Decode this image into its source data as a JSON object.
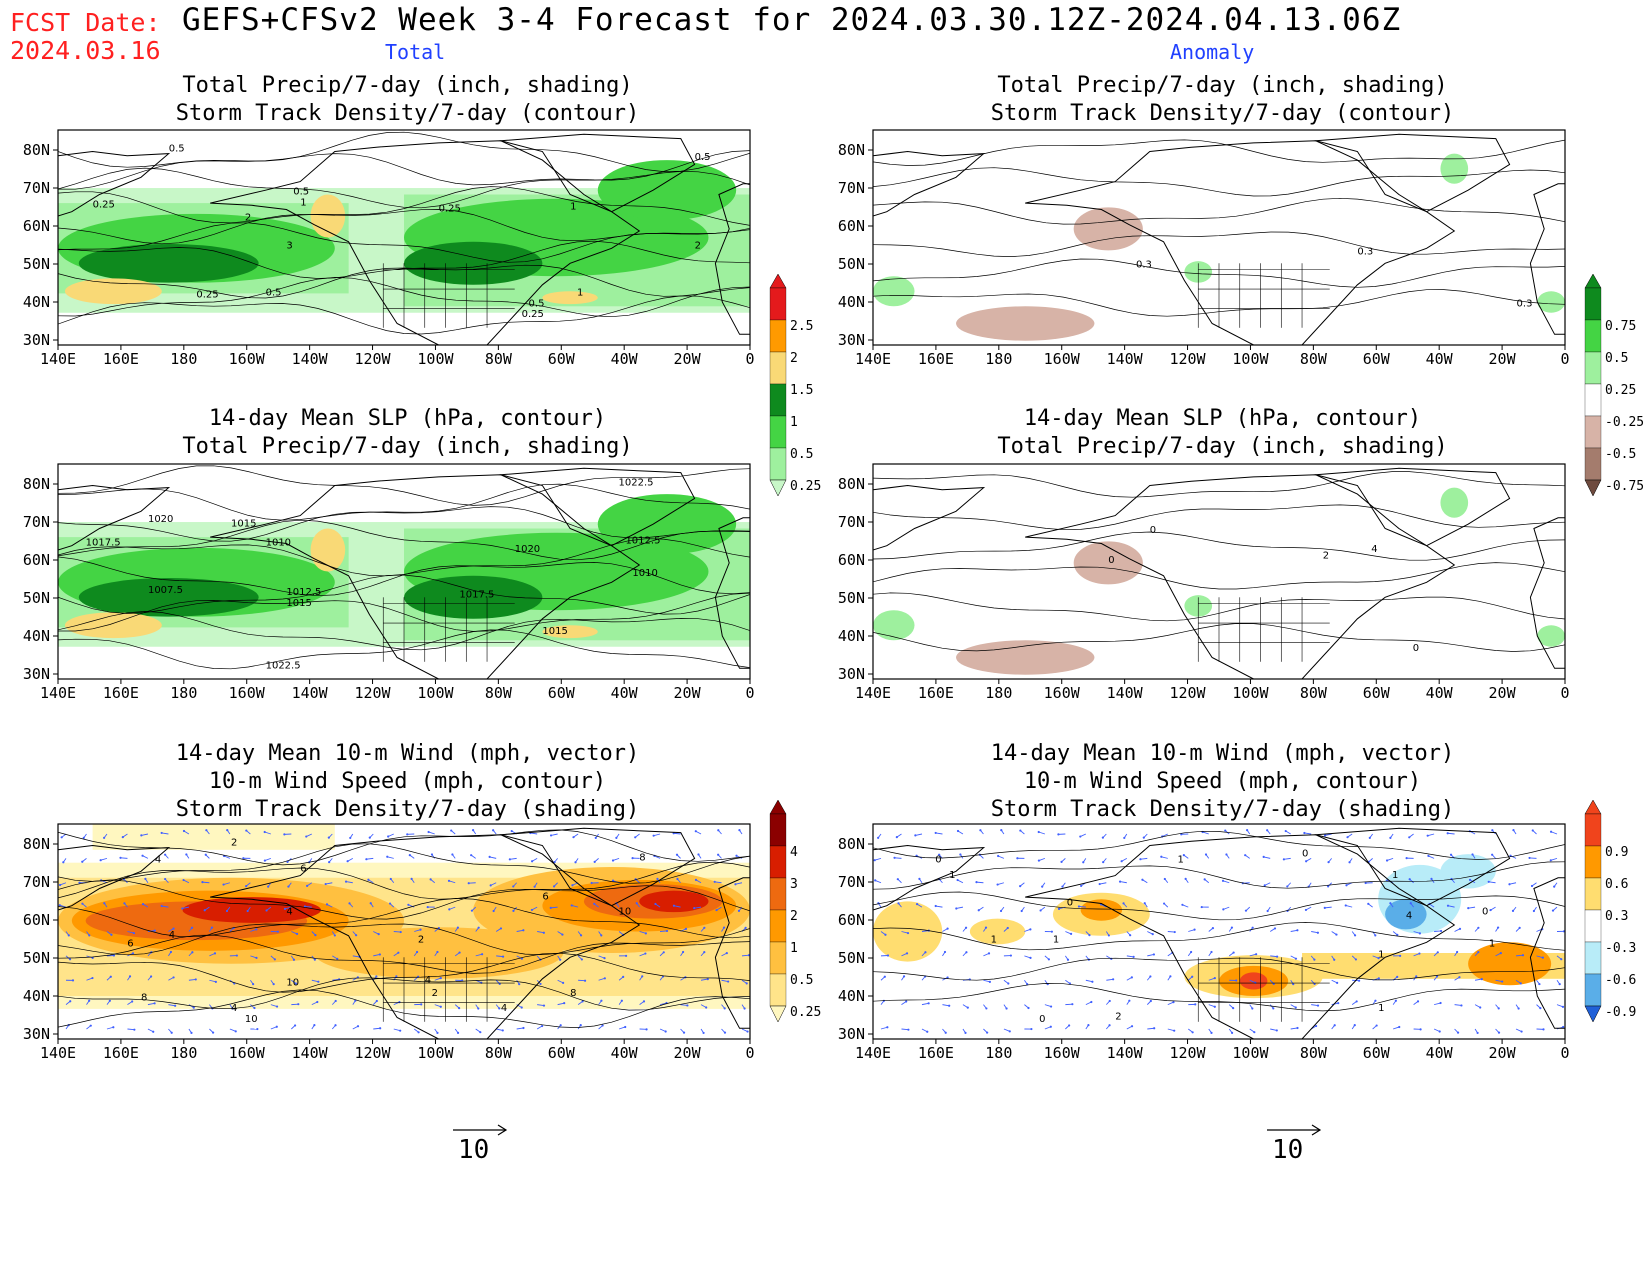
{
  "header": {
    "fcst_label": "FCST Date:",
    "fcst_date": "2024.03.16",
    "title": "GEFS+CFSv2 Week 3-4 Forecast for 2024.03.30.12Z-2024.04.13.06Z",
    "total_label": "Total",
    "anomaly_label": "Anomaly"
  },
  "axes": {
    "lat_labels": [
      "80N",
      "70N",
      "60N",
      "50N",
      "40N",
      "30N"
    ],
    "lon_labels": [
      "140E",
      "160E",
      "180",
      "160W",
      "140W",
      "120W",
      "100W",
      "80W",
      "60W",
      "40W",
      "20W",
      "0"
    ]
  },
  "panels": [
    {
      "id": "total-precip-storm",
      "title_lines": [
        "Total Precip/7-day (inch, shading)",
        "Storm Track Density/7-day (contour)"
      ],
      "scheme": "precip"
    },
    {
      "id": "anom-precip-storm",
      "title_lines": [
        "Total Precip/7-day (inch, shading)",
        "Storm Track Density/7-day (contour)"
      ],
      "scheme": "precip-anom"
    },
    {
      "id": "total-slp-precip",
      "title_lines": [
        "14-day Mean SLP (hPa, contour)",
        "Total Precip/7-day (inch, shading)"
      ],
      "scheme": "precip"
    },
    {
      "id": "anom-slp-precip",
      "title_lines": [
        "14-day Mean SLP (hPa, contour)",
        "Total Precip/7-day (inch, shading)"
      ],
      "scheme": "precip-anom"
    },
    {
      "id": "total-wind-storm",
      "title_lines": [
        "14-day Mean 10-m Wind (mph, vector)",
        "10-m Wind Speed (mph, contour)",
        "Storm Track Density/7-day (shading)"
      ],
      "scheme": "storm"
    },
    {
      "id": "anom-wind-storm",
      "title_lines": [
        "14-day Mean 10-m Wind (mph, vector)",
        "10-m Wind Speed (mph, contour)",
        "Storm Track Density/7-day (shading)"
      ],
      "scheme": "storm-anom"
    }
  ],
  "contour_labels": {
    "total-precip-storm": [
      "0.5",
      "0.25",
      "0.5",
      "1",
      "2",
      "3",
      "0.25",
      "0.5",
      "0.25",
      "1",
      "0.5",
      "0.25",
      "2",
      "0.5",
      "1"
    ],
    "anom-precip-storm": [
      "0.3",
      "0.3",
      "0.3"
    ],
    "total-slp-precip": [
      "1020",
      "1015",
      "1017.5",
      "1010",
      "1007.5",
      "1012.5",
      "1015",
      "1022.5",
      "1020",
      "1017.5",
      "1012.5",
      "1010",
      "1015",
      "1022.5"
    ],
    "anom-slp-precip": [
      "0",
      "0",
      "2",
      "4",
      "0"
    ],
    "total-wind-storm": [
      "2",
      "4",
      "6",
      "4",
      "6",
      "2",
      "8",
      "10",
      "4",
      "6",
      "8",
      "10",
      "4",
      "2",
      "4",
      "8",
      "10",
      "4"
    ],
    "anom-wind-storm": [
      "0",
      "1",
      "0",
      "1",
      "0",
      "1",
      "1",
      "4",
      "0",
      "1",
      "1",
      "1",
      "2",
      "0",
      "1"
    ]
  },
  "colorbars": {
    "precip": {
      "labels": [
        "2.5",
        "2",
        "1.5",
        "1",
        "0.5",
        "0.25"
      ],
      "colors": [
        "#e41a1c",
        "#ff9a00",
        "#f9d976",
        "#0e8a1e",
        "#44d444",
        "#9ef09e",
        "#c8f7c8"
      ]
    },
    "precip-anom": {
      "labels": [
        "0.75",
        "0.5",
        "0.25",
        "-0.25",
        "-0.5",
        "-0.75"
      ],
      "colors": [
        "#0e8a1e",
        "#44d444",
        "#9ef09e",
        "#ffffff",
        "#d7b3a7",
        "#a47c6d",
        "#6e4a3e"
      ]
    },
    "storm": {
      "labels": [
        "4",
        "3",
        "2",
        "1",
        "0.5",
        "0.25"
      ],
      "colors": [
        "#8b0000",
        "#d81e00",
        "#ee6a10",
        "#ff9900",
        "#ffc040",
        "#ffe48a",
        "#fff7c0"
      ]
    },
    "storm-anom": {
      "labels": [
        "0.9",
        "0.6",
        "0.3",
        "-0.3",
        "-0.6",
        "-0.9"
      ],
      "colors": [
        "#f0441c",
        "#ff9900",
        "#ffdd70",
        "#ffffff",
        "#b8ecf8",
        "#5aaee8",
        "#2060d8"
      ]
    }
  },
  "vector_reference": {
    "value": "10"
  },
  "colors": {
    "land_outline": "#000000",
    "total_label": "#2040ff",
    "fcst": "#ff2020"
  }
}
